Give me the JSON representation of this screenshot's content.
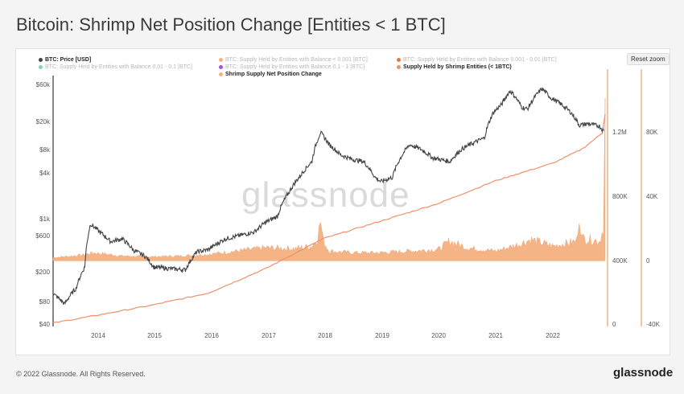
{
  "page": {
    "title": "Bitcoin: Shrimp Net Position Change [Entities < 1 BTC]",
    "reset_zoom": "Reset zoom",
    "watermark": "glassnode",
    "footer_copyright": "© 2022 Glassnode. All Rights Reserved.",
    "footer_logo": "glassnode"
  },
  "legend": [
    {
      "label": "BTC: Price [USD]",
      "color": "#444444",
      "state": "on"
    },
    {
      "label": "BTC: Supply Held by Entities with Balance < 0.001 [BTC]",
      "color": "#f0b08a",
      "state": "off"
    },
    {
      "label": "BTC: Supply Held by Entities with Balance 0.001 - 0.01 [BTC]",
      "color": "#e07a3c",
      "state": "off"
    },
    {
      "label": "BTC: Supply Held by Entities with Balance 0.01 - 0.1 [BTC]",
      "color": "#7fd3c0",
      "state": "off"
    },
    {
      "label": "BTC: Supply Held by Entities with Balance 0.1 - 1 [BTC]",
      "color": "#a94fd6",
      "state": "off"
    },
    {
      "label": "Supply Held by Shrimp Entities (< 1BTC)",
      "color": "#f0906a",
      "state": "on"
    },
    {
      "label": "Shrimp Supply Net Position Change",
      "color": "#f5b07f",
      "state": "on"
    }
  ],
  "axes": {
    "price_ticks": [
      "$60k",
      "$20k",
      "$8k",
      "$4k",
      "$1k",
      "$600",
      "$200",
      "$80",
      "$40"
    ],
    "supply_ticks": [
      "1.2M",
      "800K",
      "400K",
      "0"
    ],
    "netchange_ticks": [
      "80K",
      "40K",
      "0",
      "-40K"
    ],
    "x_ticks": [
      "2014",
      "2015",
      "2016",
      "2017",
      "2018",
      "2019",
      "2020",
      "2021",
      "2022"
    ]
  },
  "chart_data": {
    "type": "line",
    "title": "Bitcoin: Shrimp Net Position Change [Entities < 1 BTC]",
    "x_range": [
      2013.3,
      2022.9
    ],
    "yscale_price": "log",
    "price_range_usd": [
      40,
      80000
    ],
    "supply_range_btc": [
      0,
      1400000
    ],
    "netchange_range_btc": [
      -40000,
      110000
    ],
    "grid": false,
    "series": [
      {
        "name": "BTC: Price [USD]",
        "color": "#444444",
        "x": [
          2013.3,
          2013.5,
          2013.7,
          2013.85,
          2013.95,
          2014.1,
          2014.3,
          2014.5,
          2014.7,
          2014.9,
          2015.05,
          2015.3,
          2015.6,
          2015.8,
          2016.0,
          2016.3,
          2016.5,
          2016.8,
          2017.0,
          2017.2,
          2017.4,
          2017.6,
          2017.8,
          2017.95,
          2018.1,
          2018.3,
          2018.5,
          2018.7,
          2018.9,
          2019.0,
          2019.2,
          2019.5,
          2019.7,
          2019.9,
          2020.2,
          2020.4,
          2020.6,
          2020.8,
          2020.95,
          2021.1,
          2021.25,
          2021.45,
          2021.55,
          2021.8,
          2021.95,
          2022.1,
          2022.3,
          2022.45,
          2022.6,
          2022.8,
          2022.88
        ],
        "values": [
          110,
          80,
          130,
          250,
          950,
          750,
          550,
          600,
          420,
          350,
          250,
          240,
          230,
          400,
          430,
          600,
          650,
          740,
          1000,
          1200,
          2500,
          4200,
          6500,
          16000,
          11000,
          8000,
          7000,
          6500,
          4000,
          3500,
          4000,
          11000,
          9500,
          7300,
          6500,
          9500,
          11500,
          13500,
          29000,
          38000,
          58000,
          35000,
          33000,
          62000,
          47000,
          40000,
          30000,
          20000,
          21000,
          19500,
          16500
        ]
      },
      {
        "name": "Supply Held by Shrimp Entities (< 1BTC)",
        "color": "#f0906a",
        "x": [
          2013.3,
          2014.0,
          2015.0,
          2016.0,
          2017.0,
          2018.0,
          2019.0,
          2020.0,
          2021.0,
          2022.0,
          2022.5,
          2022.85,
          2022.9
        ],
        "values": [
          20000,
          60000,
          120000,
          190000,
          330000,
          500000,
          600000,
          700000,
          830000,
          930000,
          1010000,
          1100000,
          1210000
        ]
      },
      {
        "name": "Shrimp Supply Net Position Change",
        "color": "#f5b07f",
        "x": [
          2013.3,
          2013.8,
          2014.0,
          2014.5,
          2015.0,
          2015.5,
          2016.0,
          2016.5,
          2017.0,
          2017.5,
          2017.8,
          2017.9,
          2017.95,
          2018.0,
          2018.1,
          2018.5,
          2019.0,
          2019.5,
          2020.0,
          2020.2,
          2020.5,
          2021.0,
          2021.4,
          2021.6,
          2022.0,
          2022.4,
          2022.45,
          2022.5,
          2022.8,
          2022.87,
          2022.9
        ],
        "values": [
          2000,
          3500,
          5000,
          3000,
          2500,
          3000,
          4000,
          6000,
          8000,
          7500,
          9000,
          14000,
          24000,
          12000,
          6000,
          5000,
          5000,
          6000,
          7000,
          12000,
          8000,
          6000,
          10000,
          13000,
          9000,
          12000,
          28000,
          14000,
          12000,
          20000,
          90000
        ]
      }
    ]
  }
}
